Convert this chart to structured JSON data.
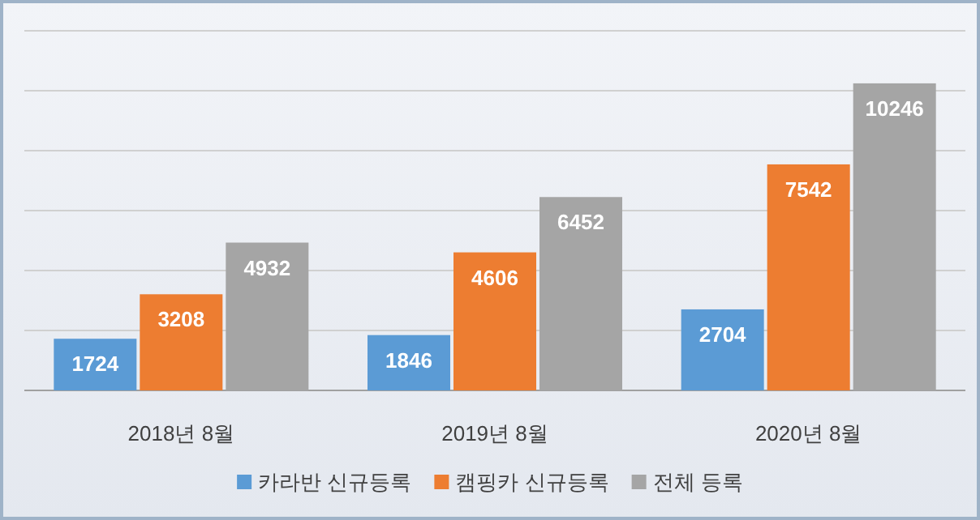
{
  "chart_data": {
    "type": "bar",
    "categories": [
      "2018년 8월",
      "2019년 8월",
      "2020년 8월"
    ],
    "series": [
      {
        "name": "카라반 신규등록",
        "color": "#5b9bd5",
        "values": [
          1724,
          1846,
          2704
        ]
      },
      {
        "name": "캠핑카 신규등록",
        "color": "#ed7d31",
        "values": [
          3208,
          4606,
          7542
        ]
      },
      {
        "name": "전체 등록",
        "color": "#a5a5a5",
        "values": [
          4932,
          6452,
          10246
        ]
      }
    ],
    "ylim": [
      0,
      12000
    ],
    "yticks": [
      {
        "value": 0,
        "label": null
      },
      {
        "value": 2000,
        "label": null
      },
      {
        "value": 4000,
        "label": null
      },
      {
        "value": 6000,
        "label": null
      },
      {
        "value": 8000,
        "label": null
      },
      {
        "value": 10000,
        "label": null
      },
      {
        "value": 12000,
        "label": null
      }
    ],
    "tick_labels": "x",
    "grid": "y",
    "data_labels": true,
    "legend": "bottom"
  }
}
